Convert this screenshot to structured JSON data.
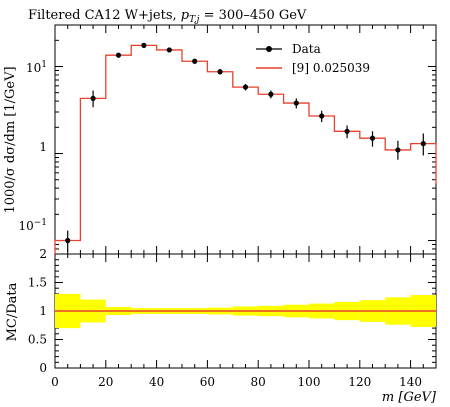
{
  "page": {
    "title_prefix": "Filtered CA12 W+jets, ",
    "title_var": "pT,j",
    "title_suffix": " = 300–450 GeV"
  },
  "chart_data": [
    {
      "type": "step",
      "panel": "main",
      "ylabel": "1000/σ dσ/dm [1/GeV]",
      "y_scale": "log",
      "ylim": [
        0.07,
        30
      ],
      "xlim": [
        0,
        150
      ],
      "y_ticks": [
        "10^-1",
        "1",
        "10^1"
      ],
      "legend": {
        "position": "top-right",
        "entries": [
          "Data",
          "[9] 0.025039"
        ]
      },
      "x_edges": [
        0,
        10,
        20,
        30,
        40,
        50,
        60,
        70,
        80,
        90,
        100,
        110,
        120,
        130,
        140,
        150
      ],
      "series": [
        {
          "name": "Data",
          "kind": "points",
          "color": "#000000",
          "x": [
            5,
            15,
            25,
            35,
            45,
            55,
            65,
            75,
            85,
            95,
            105,
            115,
            125,
            135,
            145
          ],
          "y": [
            0.1,
            4.3,
            13.5,
            17.5,
            15.5,
            11.5,
            8.7,
            5.8,
            4.8,
            3.8,
            2.7,
            1.8,
            1.5,
            1.1,
            1.3
          ],
          "y_lo": [
            0.075,
            3.4,
            12.6,
            16.6,
            14.6,
            10.8,
            8.1,
            5.3,
            4.3,
            3.3,
            2.3,
            1.5,
            1.2,
            0.85,
            0.95
          ],
          "y_hi": [
            0.13,
            5.3,
            14.4,
            18.4,
            16.4,
            12.2,
            9.3,
            6.3,
            5.3,
            4.3,
            3.1,
            2.1,
            1.8,
            1.4,
            1.7
          ]
        },
        {
          "name": "[9] 0.025039",
          "kind": "histogram",
          "color": "#e8412c",
          "values": [
            0.1,
            4.3,
            13.5,
            17.5,
            15.5,
            11.5,
            8.7,
            5.8,
            4.8,
            3.8,
            2.7,
            1.8,
            1.5,
            1.1,
            1.3
          ]
        }
      ]
    },
    {
      "type": "step",
      "panel": "ratio",
      "ylabel": "MC/Data",
      "xlabel": "m [GeV]",
      "xlim": [
        0,
        150
      ],
      "ylim": [
        0.0,
        2.0
      ],
      "y_ticks": [
        "0",
        "0.5",
        "1",
        "1.5",
        "2"
      ],
      "x_ticks": [
        "0",
        "20",
        "40",
        "60",
        "80",
        "100",
        "120",
        "140"
      ],
      "band_color": "#ffff00",
      "band_inner_color": "#ffff33",
      "line_color": "#e8412c",
      "band_lo": [
        0.7,
        0.8,
        0.93,
        0.95,
        0.95,
        0.95,
        0.94,
        0.92,
        0.91,
        0.89,
        0.87,
        0.84,
        0.81,
        0.76,
        0.72
      ],
      "band_hi": [
        1.3,
        1.2,
        1.07,
        1.05,
        1.05,
        1.05,
        1.06,
        1.08,
        1.09,
        1.11,
        1.13,
        1.16,
        1.19,
        1.24,
        1.28
      ],
      "ratio": [
        1,
        1,
        1,
        1,
        1,
        1,
        1,
        1,
        1,
        1,
        1,
        1,
        1,
        1,
        1
      ]
    }
  ]
}
